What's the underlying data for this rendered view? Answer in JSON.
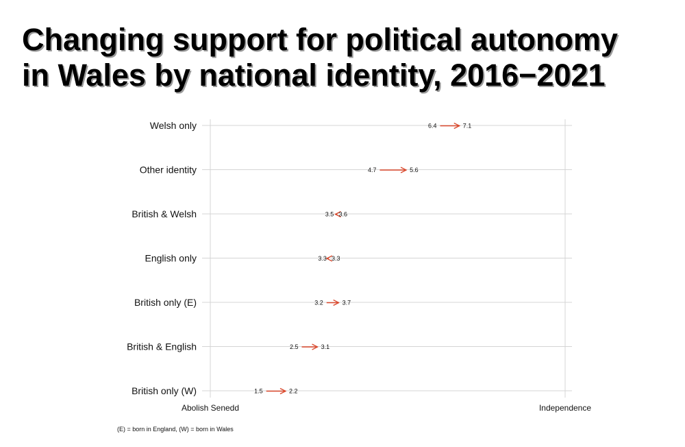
{
  "chart_data": {
    "type": "arrow-dot",
    "title_lines": [
      "Changing support for political autonomy",
      "in Wales by national identity, 2016−2021"
    ],
    "x_range": [
      0,
      10
    ],
    "x_ticks": [
      {
        "value": 0,
        "label": "Abolish Senedd"
      },
      {
        "value": 10,
        "label": "Independence"
      }
    ],
    "years": [
      "2016",
      "2021"
    ],
    "categories": [
      "Welsh only",
      "Other identity",
      "British & Welsh",
      "English only",
      "British only (E)",
      "British & English",
      "British only (W)"
    ],
    "start_values": [
      6.4,
      4.7,
      3.5,
      3.3,
      3.2,
      2.5,
      1.5
    ],
    "end_values": [
      7.1,
      5.6,
      3.6,
      3.3,
      3.7,
      3.1,
      2.2
    ],
    "start_labels": [
      "6.4",
      "4.7",
      "3.5",
      "3.3",
      "3.2",
      "2.5",
      "1.5"
    ],
    "end_labels": [
      "7.1",
      "5.6",
      "3.6",
      "3.3",
      "3.7",
      "3.1",
      "2.2"
    ],
    "note": "(E) = born in England, (W) = born in Wales",
    "arrow_color": "#d9472b",
    "grid": true
  }
}
